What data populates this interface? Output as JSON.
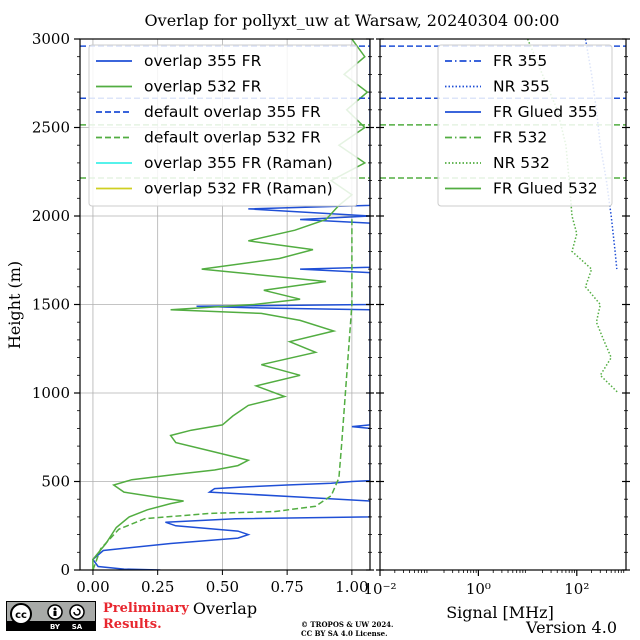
{
  "title": "Overlap for pollyxt_uw at Warsaw, 20240304 00:00",
  "footer": {
    "prelim_line1": "Preliminary",
    "prelim_line2": "Results.",
    "copyright_line1": "© TROPOS & UW 2024.",
    "copyright_line2": "CC BY SA 4.0 License.",
    "version": "Version 4.0",
    "license_badge": [
      "cc",
      "BY",
      "SA"
    ]
  },
  "chart_data": [
    {
      "type": "line",
      "panel": "left",
      "xlabel": "Overlap",
      "ylabel": "Height (m)",
      "xlim": [
        -0.05,
        1.07
      ],
      "ylim": [
        0,
        3000
      ],
      "xticks": [
        0.0,
        0.25,
        0.5,
        0.75,
        1.0
      ],
      "xtick_labels": [
        "0.00",
        "0.25",
        "0.50",
        "0.75",
        "1.00"
      ],
      "yticks": [
        0,
        500,
        1000,
        1500,
        2000,
        2500,
        3000
      ],
      "ytick_labels": [
        "0",
        "500",
        "1000",
        "1500",
        "2000",
        "2500",
        "3000"
      ],
      "grid": true,
      "legend_position": "top",
      "series": [
        {
          "name": "overlap 355 FR",
          "color": "#1f4fd6",
          "style": "solid",
          "points": [
            [
              0.26,
              0
            ],
            [
              0.12,
              5
            ],
            [
              0.02,
              20
            ],
            [
              0.0,
              60
            ],
            [
              0.04,
              110
            ],
            [
              0.3,
              150
            ],
            [
              0.56,
              180
            ],
            [
              0.6,
              200
            ],
            [
              0.56,
              220
            ],
            [
              0.32,
              250
            ],
            [
              0.28,
              270
            ],
            [
              0.55,
              290
            ],
            [
              1.07,
              300
            ],
            [
              1.07,
              390
            ],
            [
              0.82,
              410
            ],
            [
              0.45,
              440
            ],
            [
              0.47,
              460
            ],
            [
              0.6,
              470
            ],
            [
              0.75,
              480
            ],
            [
              0.92,
              490
            ],
            [
              1.0,
              500
            ],
            [
              1.07,
              505
            ],
            [
              1.07,
              800
            ],
            [
              1.0,
              810
            ],
            [
              1.07,
              820
            ],
            [
              1.07,
              1470
            ],
            [
              0.65,
              1480
            ],
            [
              0.4,
              1490
            ],
            [
              1.07,
              1500
            ],
            [
              1.07,
              1680
            ],
            [
              0.8,
              1700
            ],
            [
              1.07,
              1710
            ],
            [
              1.07,
              1960
            ],
            [
              0.8,
              1980
            ],
            [
              1.07,
              2000
            ],
            [
              0.6,
              2040
            ],
            [
              1.07,
              2060
            ],
            [
              1.07,
              3000
            ]
          ]
        },
        {
          "name": "overlap 532 FR",
          "color": "#52ad41",
          "style": "solid",
          "points": [
            [
              0.0,
              0
            ],
            [
              0.0,
              60
            ],
            [
              0.05,
              150
            ],
            [
              0.09,
              240
            ],
            [
              0.14,
              300
            ],
            [
              0.21,
              340
            ],
            [
              0.3,
              375
            ],
            [
              0.35,
              390
            ],
            [
              0.25,
              410
            ],
            [
              0.12,
              440
            ],
            [
              0.08,
              480
            ],
            [
              0.15,
              510
            ],
            [
              0.32,
              540
            ],
            [
              0.47,
              565
            ],
            [
              0.56,
              590
            ],
            [
              0.6,
              620
            ],
            [
              0.46,
              670
            ],
            [
              0.32,
              720
            ],
            [
              0.3,
              760
            ],
            [
              0.38,
              790
            ],
            [
              0.5,
              820
            ],
            [
              0.54,
              870
            ],
            [
              0.6,
              930
            ],
            [
              0.74,
              980
            ],
            [
              0.63,
              1040
            ],
            [
              0.8,
              1100
            ],
            [
              0.65,
              1160
            ],
            [
              0.86,
              1230
            ],
            [
              0.76,
              1290
            ],
            [
              0.93,
              1350
            ],
            [
              0.8,
              1410
            ],
            [
              0.65,
              1450
            ],
            [
              0.3,
              1470
            ],
            [
              0.62,
              1500
            ],
            [
              0.8,
              1530
            ],
            [
              0.66,
              1580
            ],
            [
              0.9,
              1630
            ],
            [
              0.42,
              1700
            ],
            [
              0.72,
              1760
            ],
            [
              0.85,
              1810
            ],
            [
              0.6,
              1860
            ],
            [
              0.78,
              1920
            ],
            [
              0.9,
              1980
            ],
            [
              0.95,
              2060
            ],
            [
              1.0,
              2120
            ],
            [
              0.92,
              2200
            ],
            [
              1.05,
              2300
            ],
            [
              0.95,
              2400
            ],
            [
              1.05,
              2500
            ],
            [
              0.98,
              2600
            ],
            [
              1.06,
              2700
            ],
            [
              0.97,
              2800
            ],
            [
              1.05,
              2900
            ],
            [
              1.0,
              3000
            ]
          ]
        },
        {
          "name": "default overlap 355 FR",
          "color": "#1f4fd6",
          "style": "dashed",
          "points": []
        },
        {
          "name": "default overlap 532 FR",
          "color": "#52ad41",
          "style": "dashed",
          "points": [
            [
              0.0,
              0
            ],
            [
              0.03,
              120
            ],
            [
              0.1,
              230
            ],
            [
              0.2,
              290
            ],
            [
              0.45,
              320
            ],
            [
              0.7,
              330
            ],
            [
              0.86,
              360
            ],
            [
              0.92,
              420
            ],
            [
              0.95,
              520
            ],
            [
              0.96,
              700
            ],
            [
              0.97,
              900
            ],
            [
              0.98,
              1100
            ],
            [
              0.99,
              1300
            ],
            [
              1.0,
              1500
            ],
            [
              1.0,
              1800
            ],
            [
              1.0,
              2000
            ]
          ]
        },
        {
          "name": "overlap 355 FR (Raman)",
          "color": "#3ef0e8",
          "style": "solid",
          "points": []
        },
        {
          "name": "overlap 532 FR (Raman)",
          "color": "#cfcf22",
          "style": "solid",
          "points": []
        }
      ]
    },
    {
      "type": "line",
      "panel": "right",
      "xlabel": "Signal [MHz]",
      "xscale": "log",
      "xlim": [
        0.01,
        1000
      ],
      "ylim": [
        0,
        3000
      ],
      "xtick_labels": [
        "10⁻²",
        "10⁰",
        "10²"
      ],
      "grid": false,
      "legend_position": "top",
      "series": [
        {
          "name": "FR 355",
          "color": "#1f4fd6",
          "style": "dashdot",
          "points": []
        },
        {
          "name": "NR 355",
          "color": "#1f4fd6",
          "style": "dotted",
          "points": [
            [
              150,
              3000
            ],
            [
              200,
              2800
            ],
            [
              250,
              2600
            ],
            [
              300,
              2400
            ],
            [
              400,
              2200
            ],
            [
              500,
              2000
            ],
            [
              600,
              1800
            ],
            [
              650,
              1700
            ]
          ]
        },
        {
          "name": "FR Glued 355",
          "color": "#1f4fd6",
          "style": "solid",
          "points": []
        },
        {
          "name": "FR 532",
          "color": "#52ad41",
          "style": "dashdot",
          "points": []
        },
        {
          "name": "NR 532",
          "color": "#52ad41",
          "style": "dotted",
          "points": [
            [
              10,
              3000
            ],
            [
              20,
              2800
            ],
            [
              40,
              2600
            ],
            [
              60,
              2400
            ],
            [
              70,
              2200
            ],
            [
              80,
              2000
            ],
            [
              100,
              1900
            ],
            [
              80,
              1800
            ],
            [
              200,
              1700
            ],
            [
              150,
              1600
            ],
            [
              300,
              1500
            ],
            [
              250,
              1400
            ],
            [
              350,
              1300
            ],
            [
              500,
              1200
            ],
            [
              300,
              1100
            ],
            [
              700,
              1000
            ]
          ]
        },
        {
          "name": "FR Glued 532",
          "color": "#52ad41",
          "style": "solid",
          "points": []
        }
      ],
      "horizontal_markers": [
        {
          "height": 2960,
          "color": "#1f4fd6",
          "style": "dashed"
        },
        {
          "height": 2665,
          "color": "#1f4fd6",
          "style": "dashed"
        },
        {
          "height": 2515,
          "color": "#52ad41",
          "style": "dashed"
        },
        {
          "height": 2215,
          "color": "#52ad41",
          "style": "dashed"
        }
      ]
    }
  ]
}
